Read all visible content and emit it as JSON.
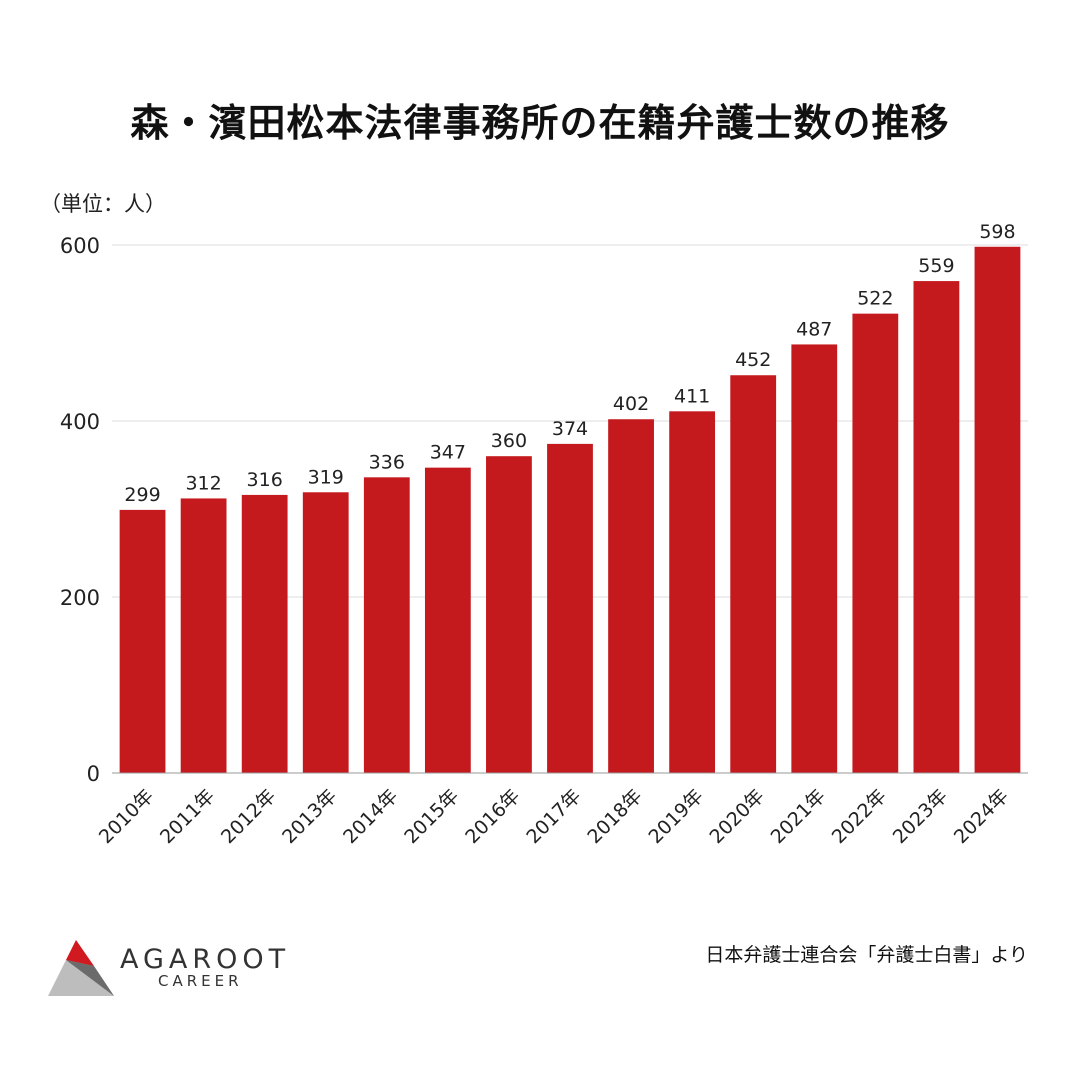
{
  "chart_data": {
    "type": "bar",
    "title": "森・濱田松本法律事務所の在籍弁護士数の推移",
    "unit_label": "（単位：人）",
    "categories": [
      "2010年",
      "2011年",
      "2012年",
      "2013年",
      "2014年",
      "2015年",
      "2016年",
      "2017年",
      "2018年",
      "2019年",
      "2020年",
      "2021年",
      "2022年",
      "2023年",
      "2024年"
    ],
    "values": [
      299,
      312,
      316,
      319,
      336,
      347,
      360,
      374,
      402,
      411,
      452,
      487,
      522,
      559,
      598
    ],
    "ylim": [
      0,
      600
    ],
    "yticks": [
      0,
      200,
      400,
      600
    ],
    "grid": true,
    "bar_color": "#c41a1e",
    "grid_color": "#dddddd"
  },
  "logo": {
    "name": "AGAROOT",
    "sub": "CAREER",
    "colors": {
      "red": "#d11a1f",
      "dark": "#6b6b6b",
      "light": "#bdbdbd"
    }
  },
  "source": "日本弁護士連合会「弁護士白書」より"
}
